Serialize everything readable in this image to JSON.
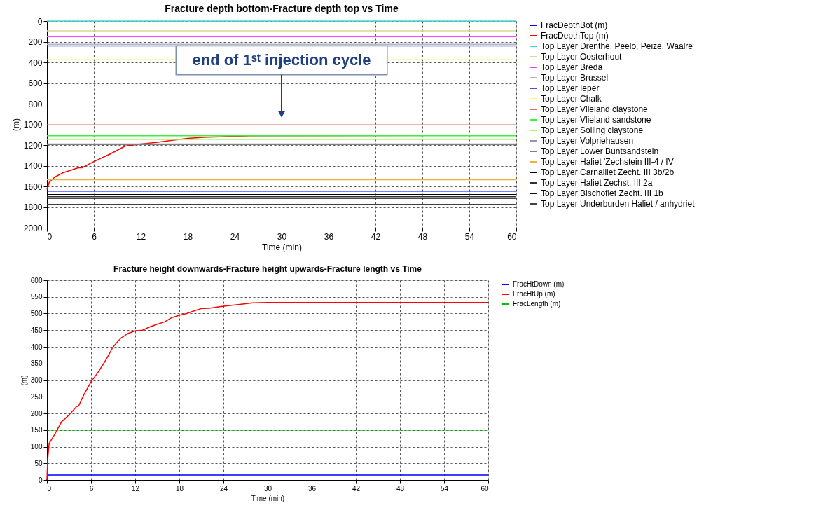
{
  "chart_data": [
    {
      "type": "line",
      "title": "Fracture depth bottom-Fracture depth top vs Time",
      "xlabel": "Time (min)",
      "ylabel": "(m)",
      "xlim": [
        0,
        60
      ],
      "ylim": [
        2000,
        0
      ],
      "xticks": [
        0,
        6,
        12,
        18,
        24,
        30,
        36,
        42,
        48,
        54,
        60
      ],
      "yticks": [
        0,
        200,
        400,
        600,
        800,
        1000,
        1200,
        1400,
        1600,
        1800,
        2000
      ],
      "grid": true,
      "legend": "right",
      "line_style": "solid",
      "annotations": [
        {
          "text": "end of 1ˢᵗ injection cycle",
          "x": 30,
          "y": 900
        }
      ],
      "series": [
        {
          "name": "FracDepthBot (m)",
          "color": "#0000ff",
          "x": [
            0,
            60
          ],
          "values": [
            1645,
            1645
          ]
        },
        {
          "name": "FracDepthTop (m)",
          "color": "#ff0000",
          "x": [
            0,
            0.3,
            1,
            2,
            4,
            4.5,
            6,
            8,
            10,
            12,
            14,
            16,
            18,
            20,
            22,
            24,
            26,
            60
          ],
          "values": [
            1630,
            1560,
            1510,
            1470,
            1420,
            1420,
            1360,
            1290,
            1210,
            1190,
            1175,
            1155,
            1135,
            1125,
            1120,
            1115,
            1110,
            1105
          ]
        },
        {
          "name": "Top Layer Drenthe, Peelo, Peize, Waalre",
          "color": "#40d8d0",
          "x": [
            0,
            60
          ],
          "values": [
            0,
            0
          ]
        },
        {
          "name": "Top Layer Oosterhout",
          "color": "#d8d890",
          "x": [
            0,
            60
          ],
          "values": [
            95,
            95
          ]
        },
        {
          "name": "Top Layer Breda",
          "color": "#ff40ff",
          "x": [
            0,
            60
          ],
          "values": [
            150,
            150
          ]
        },
        {
          "name": "Top Layer Brussel",
          "color": "#b8b8b8",
          "x": [
            0,
            60
          ],
          "values": [
            225,
            225
          ]
        },
        {
          "name": "Top Layer Ieper",
          "color": "#5050e0",
          "x": [
            0,
            60
          ],
          "values": [
            240,
            240
          ]
        },
        {
          "name": "Top Layer Chalk",
          "color": "#ffff60",
          "x": [
            0,
            60
          ],
          "values": [
            375,
            375
          ]
        },
        {
          "name": "Top Layer Vlieland claystone",
          "color": "#e86060",
          "x": [
            0,
            60
          ],
          "values": [
            1005,
            1005
          ]
        },
        {
          "name": "Top Layer Vlieland sandstone",
          "color": "#40f040",
          "x": [
            0,
            60
          ],
          "values": [
            1110,
            1110
          ]
        },
        {
          "name": "Top Layer Solling claystone",
          "color": "#a0ff60",
          "x": [
            0,
            60
          ],
          "values": [
            1145,
            1145
          ]
        },
        {
          "name": "Top Layer Volpriehausen",
          "color": "#a090b0",
          "x": [
            0,
            60
          ],
          "values": [
            1190,
            1190
          ]
        },
        {
          "name": "Top Layer Lower Buntsandstein",
          "color": "#808080",
          "x": [
            0,
            60
          ],
          "values": [
            1195,
            1195
          ]
        },
        {
          "name": "Top Layer Haliet 'Zechstein III-4 / IV",
          "color": "#f0b040",
          "x": [
            0,
            60
          ],
          "values": [
            1535,
            1535
          ]
        },
        {
          "name": "Top Layer Carnalliet Zecht. III 3b/2b",
          "color": "#000000",
          "x": [
            0,
            60
          ],
          "values": [
            1680,
            1680
          ]
        },
        {
          "name": "Top Layer Haliet Zechst. III 2a",
          "color": "#303030",
          "x": [
            0,
            60
          ],
          "values": [
            1700,
            1700
          ]
        },
        {
          "name": "Top Layer Bischofiet Zecht. III 1b",
          "color": "#101010",
          "x": [
            0,
            60
          ],
          "values": [
            1715,
            1715
          ]
        },
        {
          "name": "Top Layer Underburden Haliet / anhydriet",
          "color": "#404040",
          "x": [
            0,
            60
          ],
          "values": [
            1775,
            1775
          ]
        }
      ]
    },
    {
      "type": "line",
      "title": "Fracture height downwards-Fracture height upwards-Fracture length vs Time",
      "xlabel": "Time (min)",
      "ylabel": "(m)",
      "xlim": [
        0,
        60
      ],
      "ylim": [
        0,
        600
      ],
      "xticks": [
        0,
        6,
        12,
        18,
        24,
        30,
        36,
        42,
        48,
        54,
        60
      ],
      "yticks": [
        0,
        50,
        100,
        150,
        200,
        250,
        300,
        350,
        400,
        450,
        500,
        550,
        600
      ],
      "grid": true,
      "legend": "right",
      "line_style": "solid",
      "series": [
        {
          "name": "FracHtDown (m)",
          "color": "#0000ff",
          "x": [
            0,
            0.2,
            60
          ],
          "values": [
            0,
            15,
            15
          ]
        },
        {
          "name": "FracHtUp (m)",
          "color": "#ff0000",
          "x": [
            0,
            0.1,
            0.3,
            1,
            2,
            3,
            4,
            4.3,
            5,
            6,
            7,
            8,
            9,
            10,
            11,
            12,
            13,
            14,
            15,
            16,
            17,
            18,
            19,
            20,
            21,
            22,
            24,
            26,
            28,
            30,
            60
          ],
          "values": [
            0,
            60,
            110,
            135,
            175,
            195,
            220,
            222,
            255,
            295,
            325,
            360,
            400,
            425,
            440,
            448,
            450,
            460,
            468,
            475,
            488,
            495,
            500,
            508,
            515,
            516,
            522,
            527,
            532,
            533,
            533
          ]
        },
        {
          "name": "FracLength (m)",
          "color": "#00c000",
          "x": [
            0,
            60
          ],
          "values": [
            150,
            150
          ]
        }
      ]
    }
  ]
}
